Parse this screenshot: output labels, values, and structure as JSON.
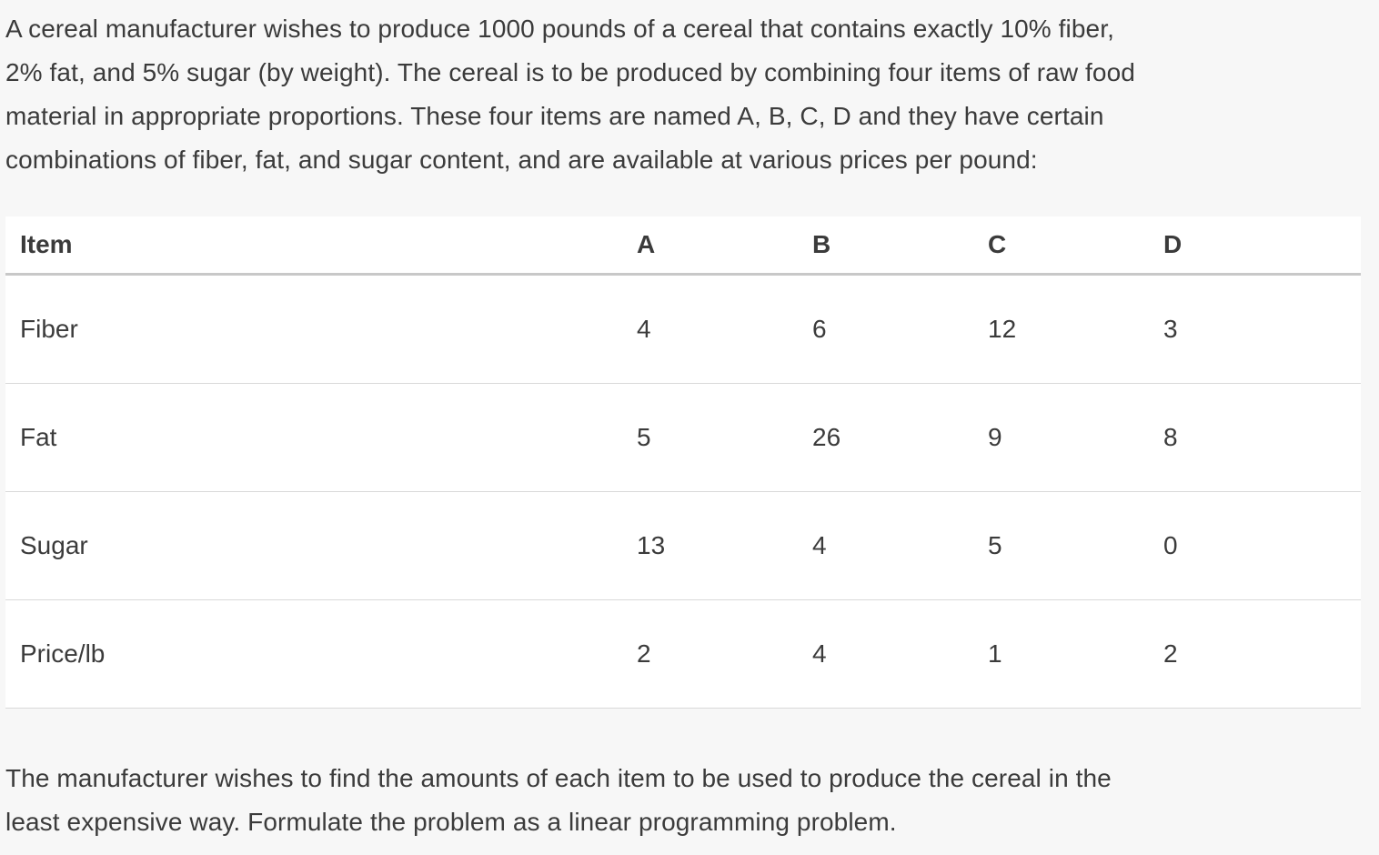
{
  "problem": {
    "intro": "A cereal manufacturer wishes to produce 1000 pounds of a cereal that contains exactly 10% fiber,\n2% fat, and 5% sugar (by weight). The cereal is to be produced by combining four items of raw food\nmaterial in appropriate proportions. These four items are named A, B, C, D and they have certain\ncombinations of fiber, fat, and sugar content, and are available at various prices per pound:",
    "closing": "The manufacturer wishes to find the amounts of each item to be used to produce the cereal in the\nleast expensive way. Formulate the problem as a linear programming problem."
  },
  "table": {
    "columns": [
      "Item",
      "A",
      "B",
      "C",
      "D"
    ],
    "rows": [
      {
        "label": "Fiber",
        "values": [
          "4",
          "6",
          "12",
          "3"
        ]
      },
      {
        "label": "Fat",
        "values": [
          "5",
          "26",
          "9",
          "8"
        ]
      },
      {
        "label": "Sugar",
        "values": [
          "13",
          "4",
          "5",
          "0"
        ]
      },
      {
        "label": "Price/lb",
        "values": [
          "2",
          "4",
          "1",
          "2"
        ]
      }
    ]
  },
  "colors": {
    "page_background": "#f7f7f7",
    "table_background": "#ffffff",
    "text": "#3b3b3b",
    "header_rule": "#c8c8c8",
    "row_rule": "#d9d9d9"
  }
}
